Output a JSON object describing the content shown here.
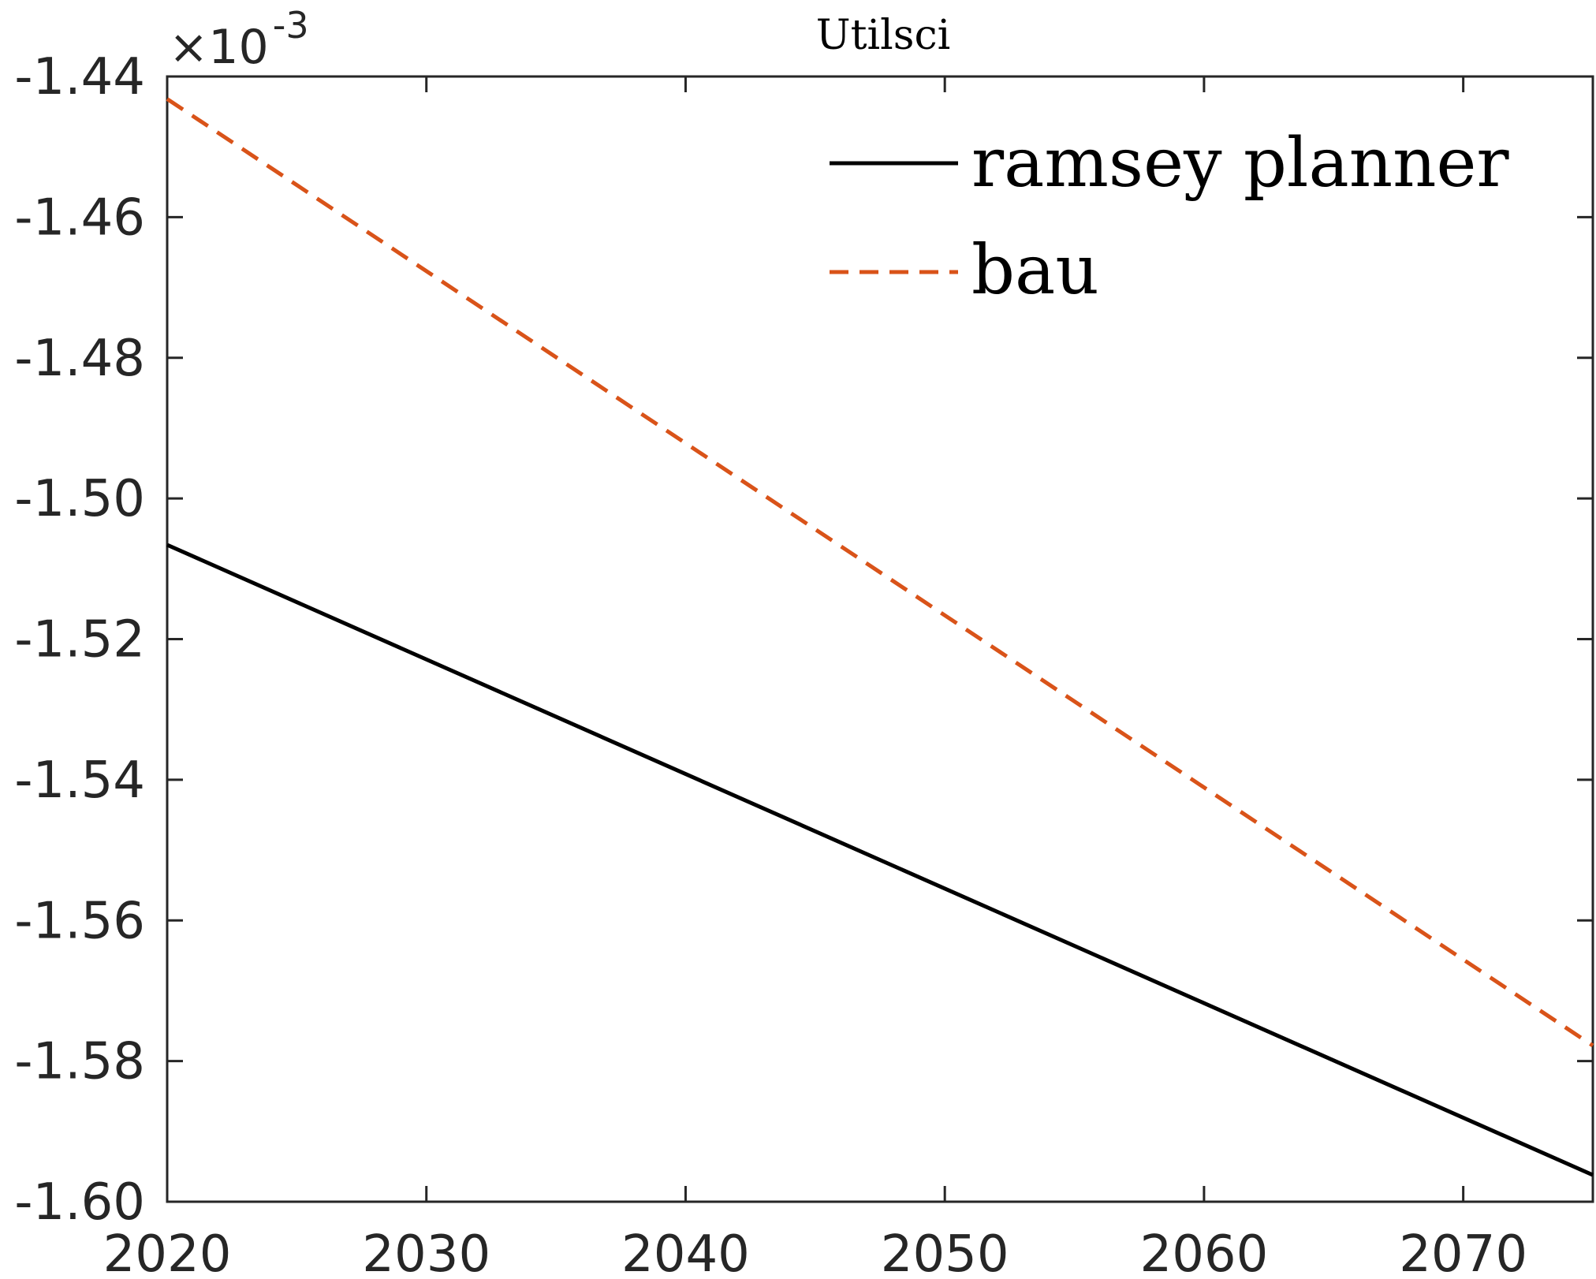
{
  "chart_data": {
    "type": "line",
    "title": "Utilsci",
    "xlabel": "",
    "ylabel": "",
    "xlim": [
      2020,
      2075
    ],
    "ylim": [
      -1.6,
      -1.44
    ],
    "y_multiplier": {
      "base": "×10",
      "exponent": "-3"
    },
    "x_ticks": [
      2020,
      2030,
      2040,
      2050,
      2060,
      2070
    ],
    "x_tick_labels": [
      "2020",
      "2030",
      "2040",
      "2050",
      "2060",
      "2070"
    ],
    "y_ticks": [
      -1.44,
      -1.46,
      -1.48,
      -1.5,
      -1.52,
      -1.54,
      -1.56,
      -1.58,
      -1.6
    ],
    "y_tick_labels": [
      "-1.44",
      "-1.46",
      "-1.48",
      "-1.50",
      "-1.52",
      "-1.54",
      "-1.56",
      "-1.58",
      "-1.60"
    ],
    "grid": false,
    "legend_position": "top-right",
    "series": [
      {
        "name": "ramsey planner",
        "color": "#000000",
        "dash": "solid",
        "x": [
          2020,
          2075
        ],
        "y": [
          -1.5066,
          -1.5962
        ]
      },
      {
        "name": "bau",
        "color": "#d95319",
        "dash": "dashed",
        "x": [
          2020,
          2075
        ],
        "y": [
          -1.4432,
          -1.5778
        ]
      }
    ]
  }
}
